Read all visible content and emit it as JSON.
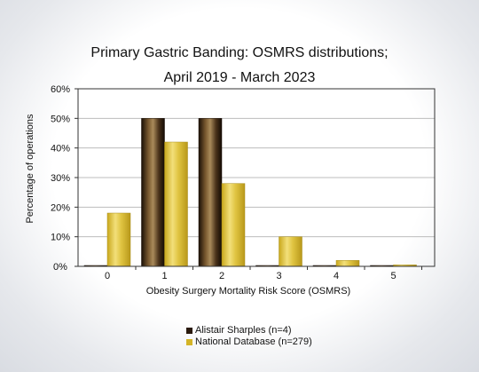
{
  "colors": {
    "series1": "#2a1a0e",
    "series2": "#d4b427",
    "axis": "#333333",
    "grid": "#bdbdbd"
  },
  "chart_data": {
    "type": "bar",
    "title": "Primary Gastric Banding: OSMRS distributions;",
    "subtitle": "April 2019 - March 2023",
    "xlabel": "Obesity Surgery Mortality Risk Score (OSMRS)",
    "ylabel": "Percentage of operations",
    "categories": [
      "0",
      "1",
      "2",
      "3",
      "4",
      "5"
    ],
    "ylim": [
      0,
      60
    ],
    "yticks": [
      "0%",
      "10%",
      "20%",
      "30%",
      "40%",
      "50%",
      "60%"
    ],
    "grid": true,
    "legend_position": "bottom",
    "series": [
      {
        "name": "Alistair Sharples (n=4)",
        "values": [
          0,
          50,
          50,
          0,
          0,
          0
        ]
      },
      {
        "name": "National Database (n=279)",
        "values": [
          18,
          42,
          28,
          10,
          2,
          0.5
        ]
      }
    ]
  }
}
